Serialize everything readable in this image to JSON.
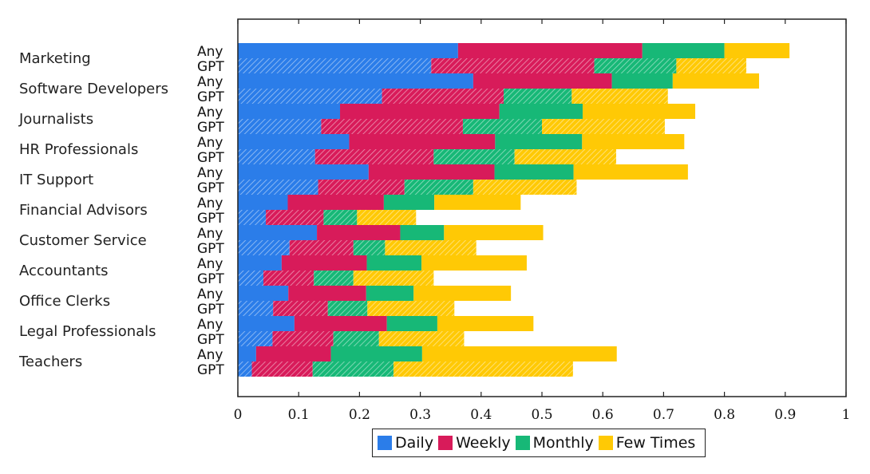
{
  "chart_data": {
    "type": "bar",
    "orientation": "horizontal",
    "stacked": true,
    "categories": [
      "Marketing",
      "Software Developers",
      "Journalists",
      "HR Professionals",
      "IT Support",
      "Financial Advisors",
      "Customer Service",
      "Accountants",
      "Office Clerks",
      "Legal Professionals",
      "Teachers"
    ],
    "sub_categories": [
      "Any",
      "GPT"
    ],
    "series": [
      {
        "name": "Daily",
        "color": "#2b7de9",
        "values": {
          "Any": [
            0.362,
            0.387,
            0.168,
            0.183,
            0.215,
            0.082,
            0.13,
            0.072,
            0.083,
            0.093,
            0.03
          ],
          "GPT": [
            0.318,
            0.237,
            0.137,
            0.127,
            0.132,
            0.046,
            0.085,
            0.042,
            0.058,
            0.057,
            0.023
          ]
        }
      },
      {
        "name": "Weekly",
        "color": "#d81b5a",
        "values": {
          "Any": [
            0.303,
            0.228,
            0.262,
            0.24,
            0.207,
            0.158,
            0.137,
            0.14,
            0.128,
            0.152,
            0.123
          ],
          "GPT": [
            0.268,
            0.2,
            0.233,
            0.195,
            0.142,
            0.095,
            0.105,
            0.083,
            0.09,
            0.1,
            0.1
          ]
        }
      },
      {
        "name": "Monthly",
        "color": "#17b877",
        "values": {
          "Any": [
            0.135,
            0.1,
            0.137,
            0.143,
            0.13,
            0.083,
            0.072,
            0.09,
            0.078,
            0.083,
            0.15
          ],
          "GPT": [
            0.135,
            0.112,
            0.13,
            0.133,
            0.113,
            0.055,
            0.052,
            0.065,
            0.065,
            0.075,
            0.133
          ]
        }
      },
      {
        "name": "Few Times",
        "color": "#ffc905",
        "values": {
          "Any": [
            0.107,
            0.142,
            0.185,
            0.168,
            0.188,
            0.142,
            0.163,
            0.173,
            0.16,
            0.158,
            0.32
          ],
          "GPT": [
            0.115,
            0.158,
            0.202,
            0.167,
            0.17,
            0.097,
            0.15,
            0.132,
            0.143,
            0.14,
            0.295
          ]
        }
      }
    ],
    "xlim": [
      0,
      1
    ],
    "x_ticks": [
      0,
      0.1,
      0.2,
      0.3,
      0.4,
      0.5,
      0.6,
      0.7,
      0.8,
      0.9,
      1
    ],
    "x_tick_labels": [
      "0",
      "0.1",
      "0.2",
      "0.3",
      "0.4",
      "0.5",
      "0.6",
      "0.7",
      "0.8",
      "0.9",
      "1"
    ],
    "gpt_bars_hatched": true,
    "grid": false,
    "legend_position": "bottom-center"
  }
}
